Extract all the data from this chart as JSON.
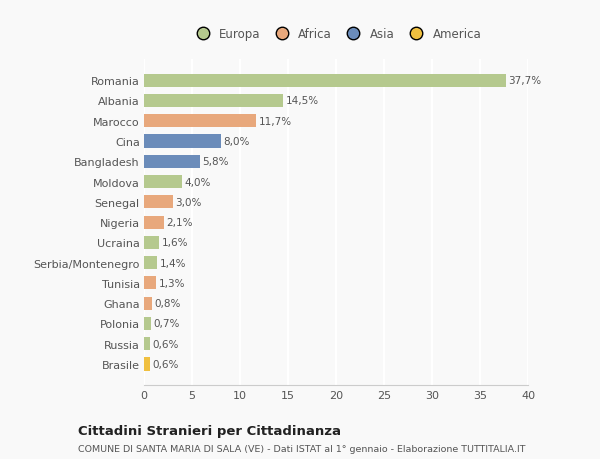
{
  "countries": [
    "Romania",
    "Albania",
    "Marocco",
    "Cina",
    "Bangladesh",
    "Moldova",
    "Senegal",
    "Nigeria",
    "Ucraina",
    "Serbia/Montenegro",
    "Tunisia",
    "Ghana",
    "Polonia",
    "Russia",
    "Brasile"
  ],
  "values": [
    37.7,
    14.5,
    11.7,
    8.0,
    5.8,
    4.0,
    3.0,
    2.1,
    1.6,
    1.4,
    1.3,
    0.8,
    0.7,
    0.6,
    0.6
  ],
  "labels": [
    "37,7%",
    "14,5%",
    "11,7%",
    "8,0%",
    "5,8%",
    "4,0%",
    "3,0%",
    "2,1%",
    "1,6%",
    "1,4%",
    "1,3%",
    "0,8%",
    "0,7%",
    "0,6%",
    "0,6%"
  ],
  "colors": [
    "#b5c98e",
    "#b5c98e",
    "#e8a87c",
    "#6b8cba",
    "#6b8cba",
    "#b5c98e",
    "#e8a87c",
    "#e8a87c",
    "#b5c98e",
    "#b5c98e",
    "#e8a87c",
    "#e8a87c",
    "#b5c98e",
    "#b5c98e",
    "#f0c040"
  ],
  "legend_labels": [
    "Europa",
    "Africa",
    "Asia",
    "America"
  ],
  "legend_colors": [
    "#b5c98e",
    "#e8a87c",
    "#6b8cba",
    "#f0c040"
  ],
  "title": "Cittadini Stranieri per Cittadinanza",
  "subtitle": "COMUNE DI SANTA MARIA DI SALA (VE) - Dati ISTAT al 1° gennaio - Elaborazione TUTTITALIA.IT",
  "xlim": [
    0,
    40
  ],
  "xticks": [
    0,
    5,
    10,
    15,
    20,
    25,
    30,
    35,
    40
  ],
  "background_color": "#f9f9f9",
  "grid_color": "#ffffff",
  "bar_height": 0.65
}
